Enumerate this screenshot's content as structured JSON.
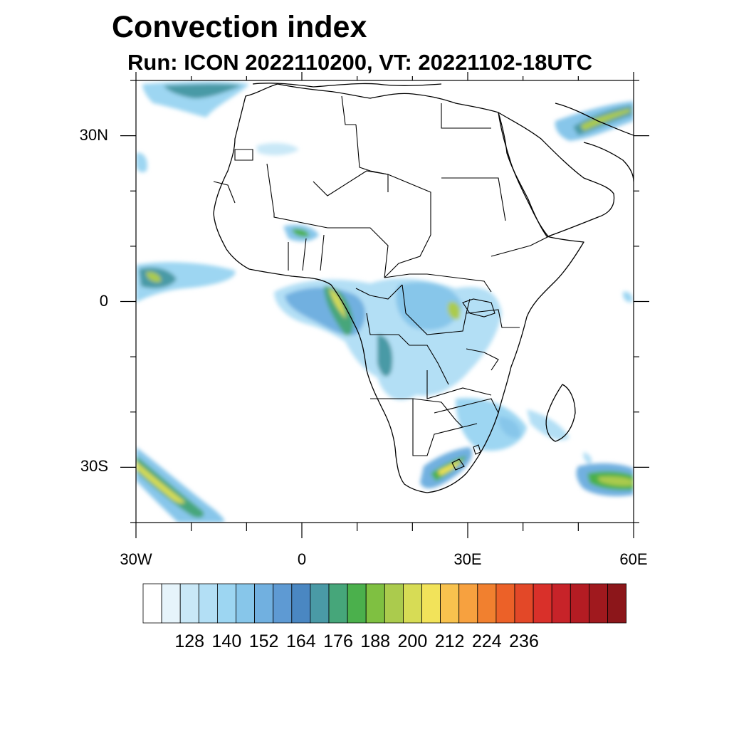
{
  "title": "Convection index",
  "subtitle": "Run: ICON 2022110200,  VT: 20221102-18UTC",
  "map": {
    "region": "Africa",
    "lon_range": [
      -30,
      60
    ],
    "lat_range": [
      -40,
      40
    ],
    "lat_ticks": [
      {
        "value": 30,
        "label": "30N"
      },
      {
        "value": 0,
        "label": "0"
      },
      {
        "value": -30,
        "label": "30S"
      }
    ],
    "lon_ticks": [
      {
        "value": -30,
        "label": "30W"
      },
      {
        "value": 0,
        "label": "0"
      },
      {
        "value": 30,
        "label": "30E"
      },
      {
        "value": 60,
        "label": "60E"
      }
    ]
  },
  "colorbar": {
    "colors": [
      "#ffffff",
      "#e6f4fb",
      "#c9e8f7",
      "#b3dff5",
      "#9dd6f2",
      "#87c6ea",
      "#71b0e0",
      "#5e9ad3",
      "#4a87c2",
      "#4a9aa6",
      "#46a67a",
      "#4bb04c",
      "#7fc041",
      "#abcb4d",
      "#d7dc55",
      "#f2e35a",
      "#f8c24e",
      "#f7a13f",
      "#f1802f",
      "#ec6128",
      "#e34828",
      "#d9302a",
      "#c72329",
      "#b41c23",
      "#a0191e",
      "#8c161a"
    ],
    "tick_values": [
      128,
      140,
      152,
      164,
      176,
      188,
      200,
      212,
      224,
      236
    ]
  }
}
